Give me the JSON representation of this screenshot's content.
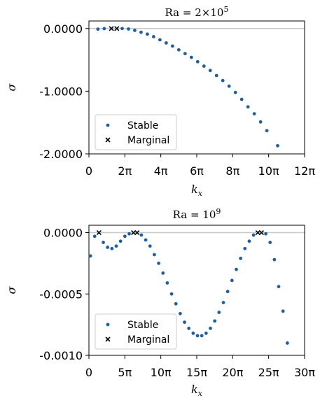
{
  "figure": {
    "background": "#ffffff"
  },
  "colors": {
    "stable": "#1f5fa0",
    "marginal": "#000000",
    "reference_line": "#c8c8c8"
  },
  "chart_data": [
    {
      "type": "scatter",
      "title": "Ra = 2×10⁵",
      "title_base": "Ra = 2×10",
      "title_exp": "5",
      "xlabel_main": "k",
      "xlabel_sub": "x",
      "ylabel": "σ",
      "xlim_pi": [
        0,
        12
      ],
      "ylim": [
        -2.0,
        0.12
      ],
      "xticks_pi": [
        0,
        2,
        4,
        6,
        8,
        10,
        12
      ],
      "xtick_labels": [
        "0",
        "2π",
        "4π",
        "6π",
        "8π",
        "10π",
        "12π"
      ],
      "yticks": [
        0.0,
        -1.0,
        -2.0
      ],
      "ytick_labels": [
        "0.0000",
        "-1.0000",
        "-2.0000"
      ],
      "reference_line_y": 0,
      "legend": {
        "position": "lower-left",
        "entries": [
          "Stable",
          "Marginal"
        ]
      },
      "series": [
        {
          "name": "Stable",
          "marker": "dot",
          "x_pi": [
            0.5,
            0.85,
            1.85,
            2.2,
            2.55,
            2.9,
            3.25,
            3.6,
            3.95,
            4.3,
            4.65,
            5.0,
            5.35,
            5.7,
            6.05,
            6.4,
            6.75,
            7.1,
            7.45,
            7.8,
            8.15,
            8.5,
            8.85,
            9.2,
            9.55,
            9.9,
            10.5
          ],
          "y": [
            -0.01,
            -0.002,
            -0.001,
            -0.008,
            -0.03,
            -0.06,
            -0.09,
            -0.13,
            -0.18,
            -0.23,
            -0.28,
            -0.34,
            -0.4,
            -0.46,
            -0.53,
            -0.6,
            -0.67,
            -0.75,
            -0.83,
            -0.92,
            -1.02,
            -1.13,
            -1.25,
            -1.36,
            -1.49,
            -1.63,
            -1.87
          ]
        },
        {
          "name": "Marginal",
          "marker": "x",
          "x_pi": [
            1.25,
            1.55
          ],
          "y": [
            0.0,
            0.0
          ]
        }
      ]
    },
    {
      "type": "scatter",
      "title": "Ra = 10⁹",
      "title_base": "Ra = 10",
      "title_exp": "9",
      "xlabel_main": "k",
      "xlabel_sub": "x",
      "ylabel": "σ",
      "xlim_pi": [
        0,
        30
      ],
      "ylim": [
        -0.001,
        6e-05
      ],
      "xticks_pi": [
        0,
        5,
        10,
        15,
        20,
        25,
        30
      ],
      "xtick_labels": [
        "0",
        "5π",
        "10π",
        "15π",
        "20π",
        "25π",
        "30π"
      ],
      "yticks": [
        0.0,
        -0.0005,
        -0.001
      ],
      "ytick_labels": [
        "0.0000",
        "-0.0005",
        "-0.0010"
      ],
      "reference_line_y": 0,
      "legend": {
        "position": "lower-left",
        "entries": [
          "Stable",
          "Marginal"
        ]
      },
      "series": [
        {
          "name": "Stable",
          "marker": "dot",
          "x_pi": [
            0.2,
            0.8,
            2.0,
            2.6,
            3.2,
            3.8,
            4.4,
            5.0,
            5.6,
            7.3,
            7.9,
            8.5,
            9.1,
            9.7,
            10.3,
            10.9,
            11.5,
            12.1,
            12.7,
            13.3,
            13.9,
            14.5,
            15.1,
            15.7,
            16.3,
            16.9,
            17.5,
            18.1,
            18.7,
            19.3,
            19.9,
            20.5,
            21.1,
            21.7,
            22.3,
            22.9,
            24.6,
            25.2,
            25.8,
            26.4,
            27.0,
            27.6
          ],
          "y": [
            -0.00019,
            -3e-05,
            -8e-05,
            -0.00012,
            -0.00013,
            -0.00011,
            -7e-05,
            -3e-05,
            -1e-05,
            -2e-05,
            -6e-05,
            -0.00011,
            -0.00018,
            -0.00025,
            -0.00033,
            -0.00041,
            -0.0005,
            -0.00058,
            -0.00066,
            -0.00073,
            -0.00078,
            -0.00082,
            -0.00084,
            -0.00084,
            -0.00082,
            -0.00078,
            -0.00072,
            -0.00065,
            -0.00057,
            -0.00048,
            -0.00039,
            -0.0003,
            -0.00021,
            -0.00013,
            -7e-05,
            -2e-05,
            -1e-05,
            -8e-05,
            -0.00022,
            -0.00044,
            -0.00064,
            -0.0009
          ]
        },
        {
          "name": "Marginal",
          "marker": "x",
          "x_pi": [
            1.4,
            6.2,
            6.7,
            23.5,
            24.0
          ],
          "y": [
            0.0,
            0.0,
            0.0,
            0.0,
            0.0
          ]
        }
      ]
    }
  ]
}
